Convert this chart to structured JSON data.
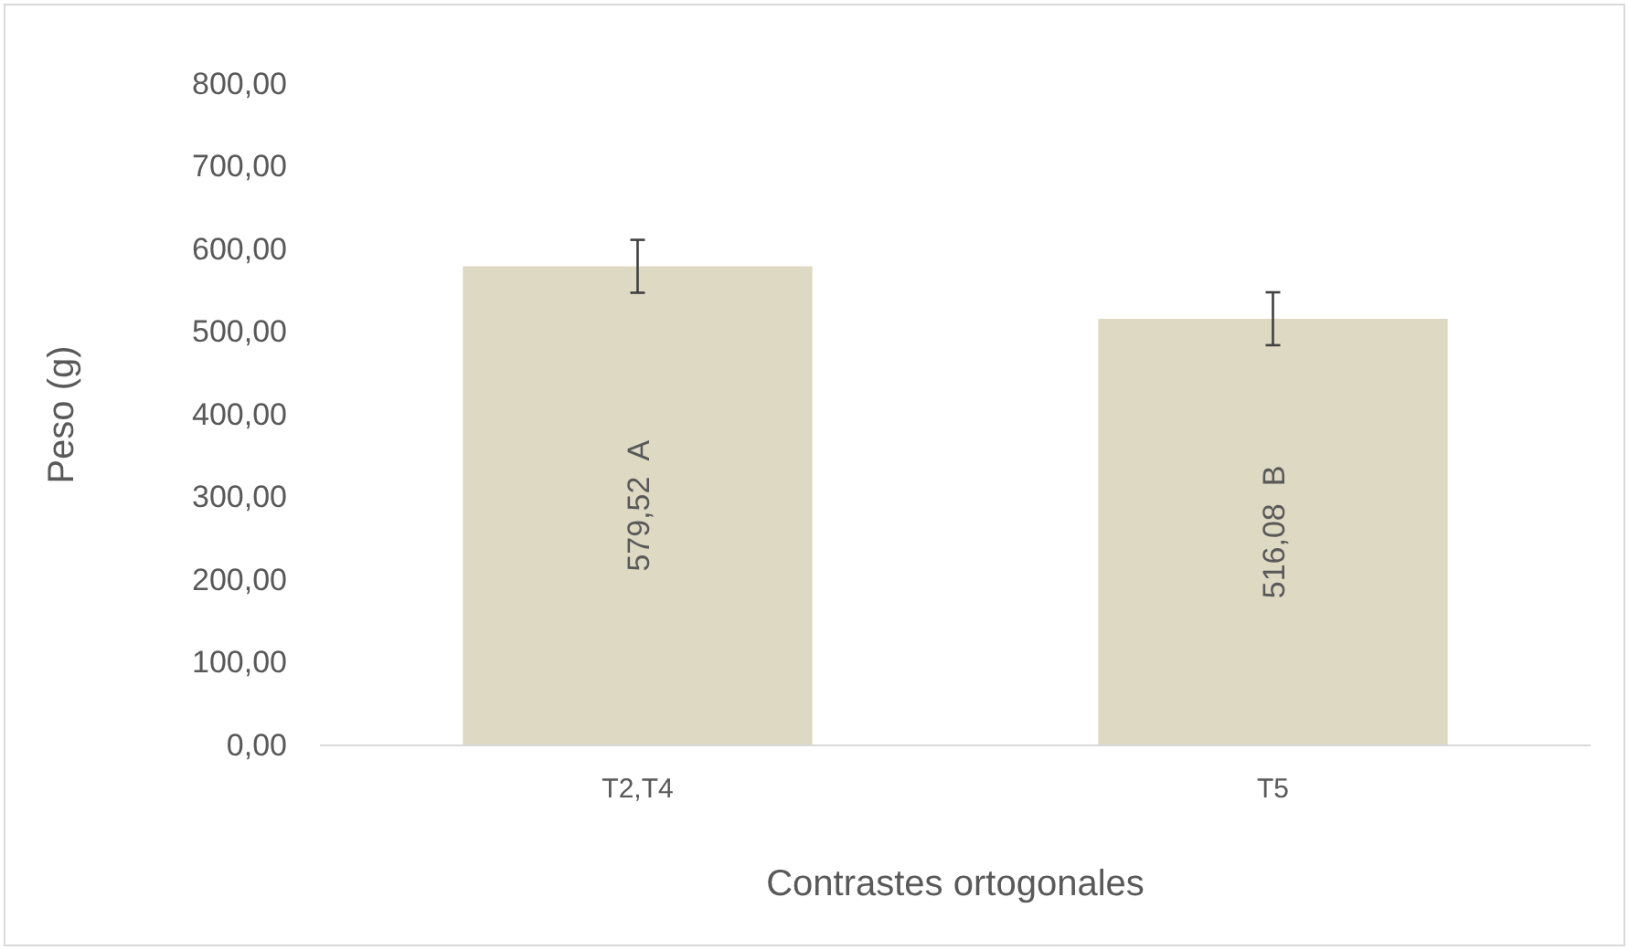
{
  "chart_data": {
    "type": "bar",
    "xlabel": "Contrastes ortogonales",
    "ylabel": "Peso (g)",
    "categories": [
      "T2,T4",
      "T5"
    ],
    "values": [
      579.52,
      516.08
    ],
    "errors": [
      32,
      32
    ],
    "value_labels": [
      "579,52  A",
      "516,08  B"
    ],
    "color": "#ddd9c3",
    "ylim": [
      0,
      800
    ],
    "yticks": [
      {
        "value": 0,
        "label": "0,00"
      },
      {
        "value": 100,
        "label": "100,00"
      },
      {
        "value": 200,
        "label": "200,00"
      },
      {
        "value": 300,
        "label": "300,00"
      },
      {
        "value": 400,
        "label": "400,00"
      },
      {
        "value": 500,
        "label": "500,00"
      },
      {
        "value": 600,
        "label": "600,00"
      },
      {
        "value": 700,
        "label": "700,00"
      },
      {
        "value": 800,
        "label": "800,00"
      }
    ],
    "grid": false
  }
}
